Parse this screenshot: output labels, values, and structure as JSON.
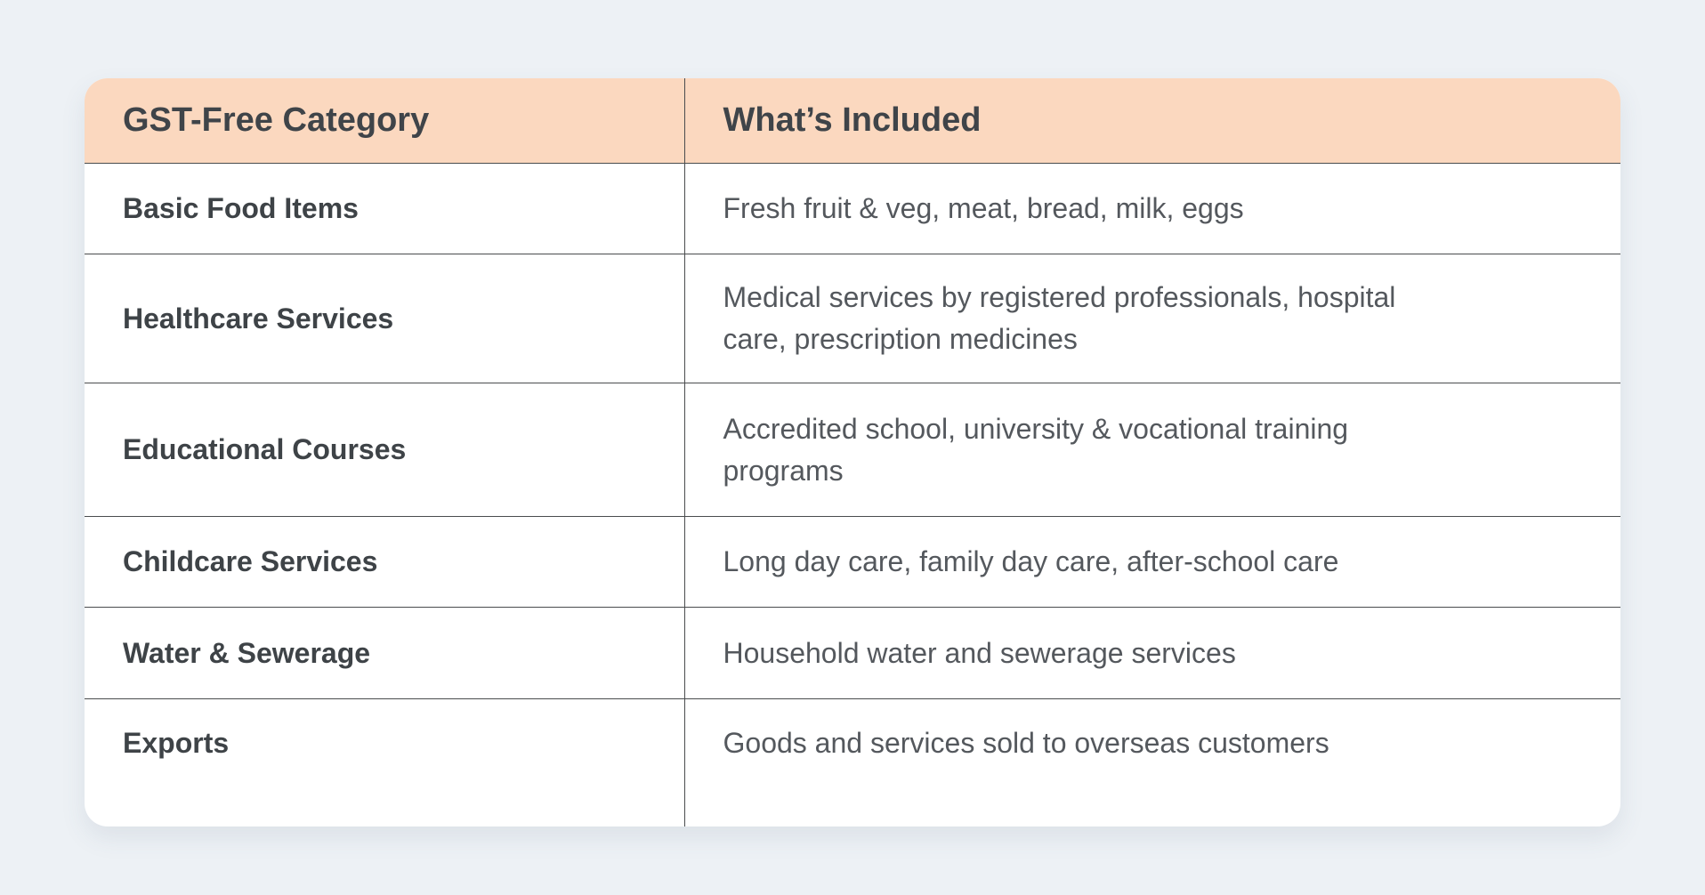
{
  "page": {
    "background_color": "#edf1f5"
  },
  "table": {
    "header_bg_color": "#fbd8bf",
    "border_color": "#4a4c4e",
    "columns": [
      "GST-Free Category",
      "What’s Included"
    ],
    "rows": [
      {
        "category": "Basic Food Items",
        "included": "Fresh fruit & veg, meat, bread, milk, eggs"
      },
      {
        "category": "Healthcare Services",
        "included": "Medical services by registered professionals, hospital\ncare, prescription medicines"
      },
      {
        "category": "Educational Courses",
        "included": "Accredited school, university & vocational training\nprograms"
      },
      {
        "category": "Childcare Services",
        "included": "Long day care, family day care, after-school care"
      },
      {
        "category": "Water & Sewerage",
        "included": "Household water and sewerage services"
      },
      {
        "category": "Exports",
        "included": "Goods and services sold to overseas customers"
      }
    ]
  }
}
